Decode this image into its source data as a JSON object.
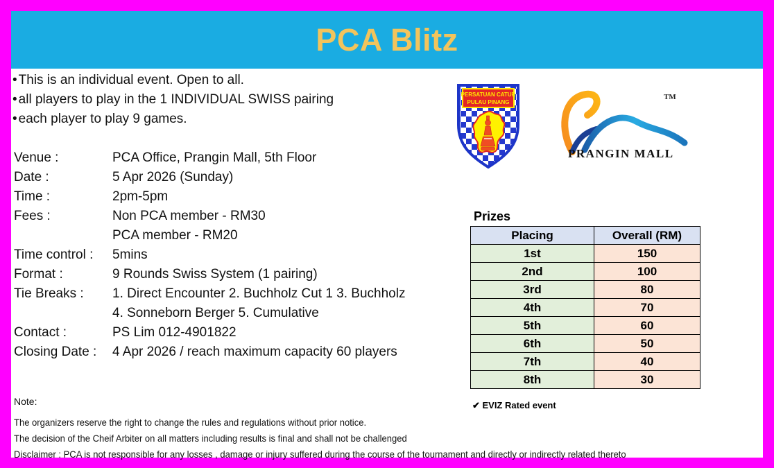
{
  "colors": {
    "border": "#FF00FF",
    "header_bg": "#1AACE2",
    "title": "#F2C45C",
    "table_header_bg": "#D9E1F2",
    "placing_bg": "#E2EFDA",
    "prize_bg": "#FCE4D6"
  },
  "header": {
    "title": "PCA Blitz"
  },
  "bullets": [
    "This is an individual event. Open to all.",
    "all players to play in the 1 INDIVIDUAL SWISS pairing",
    "each player to play 9 games."
  ],
  "details": {
    "rows": [
      {
        "label": "Venue :",
        "value": "PCA Office, Prangin Mall, 5th Floor"
      },
      {
        "label": "Date :",
        "value": "5 Apr 2026 (Sunday)"
      },
      {
        "label": "Time :",
        "value": "2pm-5pm"
      },
      {
        "label": "Fees :",
        "value": "Non PCA member - RM30"
      },
      {
        "label": "",
        "value": "PCA member - RM20"
      },
      {
        "label": "Time control :",
        "value": "5mins"
      },
      {
        "label": "Format :",
        "value": "9 Rounds Swiss System (1 pairing)"
      },
      {
        "label": "Tie Breaks :",
        "value": "1. Direct Encounter 2. Buchholz Cut 1 3. Buchholz"
      },
      {
        "label": "",
        "value": "4. Sonneborn Berger 5. Cumulative"
      },
      {
        "label": "Contact :",
        "value": "PS Lim 012-4901822"
      },
      {
        "label": "Closing Date :",
        "value": "4 Apr 2026 / reach maximum capacity 60 players"
      }
    ]
  },
  "logos": {
    "pca": {
      "banner_line1": "PERSATUAN CATUR",
      "banner_line2": "PULAU PINANG"
    },
    "prangin": {
      "name": "PRANGIN MALL",
      "trademark": "TM"
    }
  },
  "prizes": {
    "heading": "Prizes",
    "columns": [
      "Placing",
      "Overall (RM)"
    ],
    "rows": [
      [
        "1st",
        "150"
      ],
      [
        "2nd",
        "100"
      ],
      [
        "3rd",
        "80"
      ],
      [
        "4th",
        "70"
      ],
      [
        "5th",
        "60"
      ],
      [
        "6th",
        "50"
      ],
      [
        "7th",
        "40"
      ],
      [
        "8th",
        "30"
      ]
    ],
    "footnote": "✔ EVIZ Rated event"
  },
  "notes": {
    "heading": "Note:",
    "lines": [
      "The organizers reserve the right to change the rules and regulations without prior notice.",
      "The decision of the Cheif Arbiter on all matters including results is final and shall not be challenged",
      "Disclaimer : PCA is not responsible for any losses , damage or injury suffered during the course of the tournament and directly or indirectly related thereto"
    ]
  }
}
